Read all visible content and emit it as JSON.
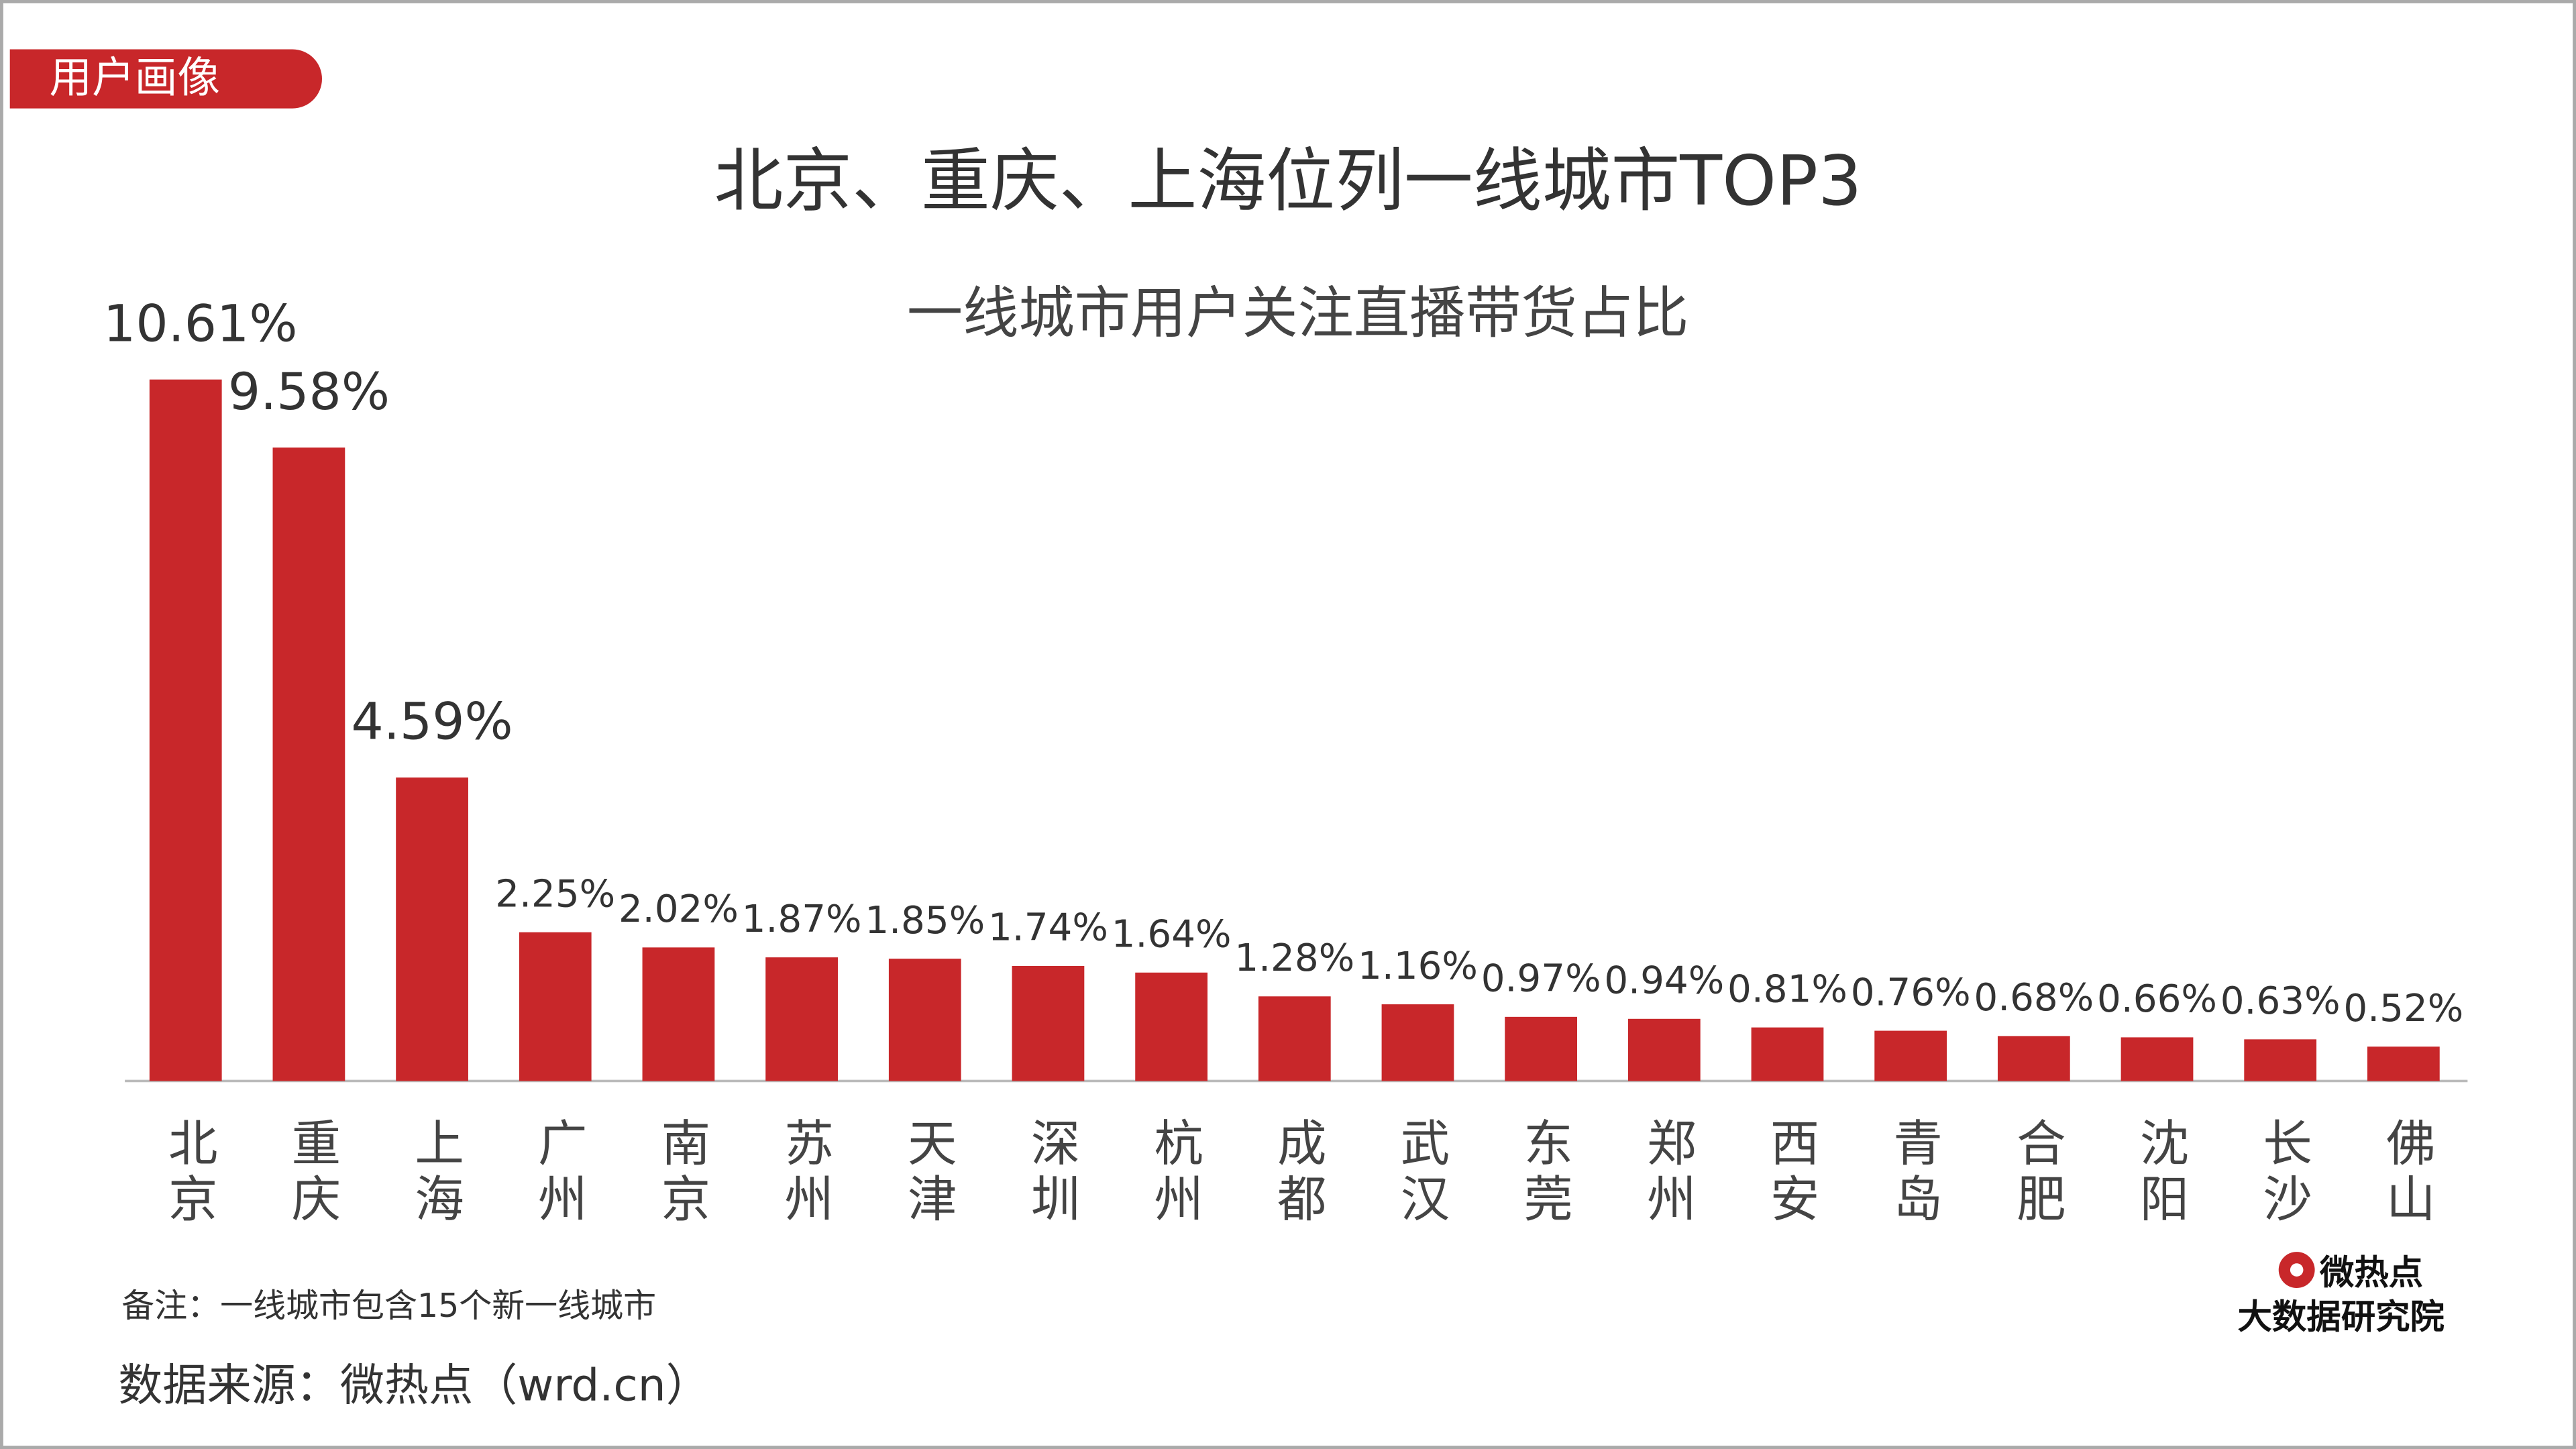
{
  "chart_data": {
    "type": "bar",
    "tag": "用户画像",
    "title": "北京、重庆、上海位列一线城市TOP3",
    "subtitle": "一线城市用户关注直播带货占比",
    "categories": [
      "北京",
      "重庆",
      "上海",
      "广州",
      "南京",
      "苏州",
      "天津",
      "深圳",
      "杭州",
      "成都",
      "武汉",
      "东莞",
      "郑州",
      "西安",
      "青岛",
      "合肥",
      "沈阳",
      "长沙",
      "佛山"
    ],
    "values": [
      10.61,
      9.58,
      4.59,
      2.25,
      2.02,
      1.87,
      1.85,
      1.74,
      1.64,
      1.28,
      1.16,
      0.97,
      0.94,
      0.81,
      0.76,
      0.68,
      0.66,
      0.63,
      0.52
    ],
    "value_labels": [
      "10.61%",
      "9.58%",
      "4.59%",
      "2.25%",
      "2.02%",
      "1.87%",
      "1.85%",
      "1.74%",
      "1.64%",
      "1.28%",
      "1.16%",
      "0.97%",
      "0.94%",
      "0.81%",
      "0.76%",
      "0.68%",
      "0.66%",
      "0.63%",
      "0.52%"
    ],
    "color": "#c8272a",
    "note": "备注：一线城市包含15个新一线城市",
    "source": "数据来源：微热点（wrd.cn）",
    "logo": [
      "微热点",
      "大数据研究院"
    ]
  }
}
